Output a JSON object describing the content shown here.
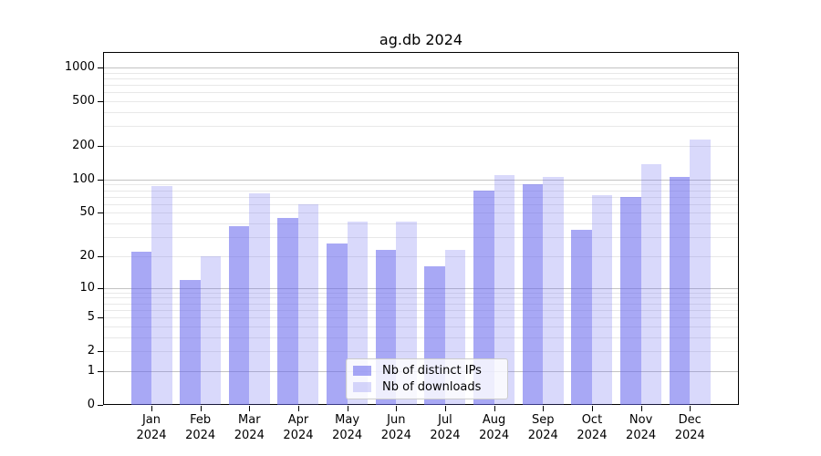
{
  "title": "ag.db 2024",
  "colors": {
    "series_dark": "rgba(102,102,238,0.57)",
    "series_light": "rgba(102,102,238,0.25)",
    "series_base_hex": "#6666ee",
    "grid_major": "#c3c3c3",
    "grid_minor": "#e8e8e8",
    "spine": "#000000",
    "legend_border": "#cccccc",
    "background": "#ffffff"
  },
  "chart_data": {
    "type": "bar",
    "title": "ag.db 2024",
    "categories": [
      "Jan 2024",
      "Feb 2024",
      "Mar 2024",
      "Apr 2024",
      "May 2024",
      "Jun 2024",
      "Jul 2024",
      "Aug 2024",
      "Sep 2024",
      "Oct 2024",
      "Nov 2024",
      "Dec 2024"
    ],
    "series": [
      {
        "name": "Nb of distinct IPs",
        "color": "rgba(102,102,238,0.57)",
        "values": [
          22,
          12,
          38,
          45,
          26,
          23,
          16,
          80,
          90,
          35,
          69,
          105
        ]
      },
      {
        "name": "Nb of downloads",
        "color": "rgba(102,102,238,0.25)",
        "values": [
          88,
          20,
          75,
          60,
          42,
          42,
          23,
          110,
          105,
          72,
          137,
          230
        ]
      }
    ],
    "xlabel": "",
    "ylabel": "",
    "yscale": "log1p",
    "yticks": [
      0,
      1,
      2,
      5,
      10,
      20,
      50,
      100,
      200,
      500,
      1000
    ],
    "ylim": [
      0,
      1375
    ],
    "grid": true,
    "legend_position": "lower center"
  }
}
